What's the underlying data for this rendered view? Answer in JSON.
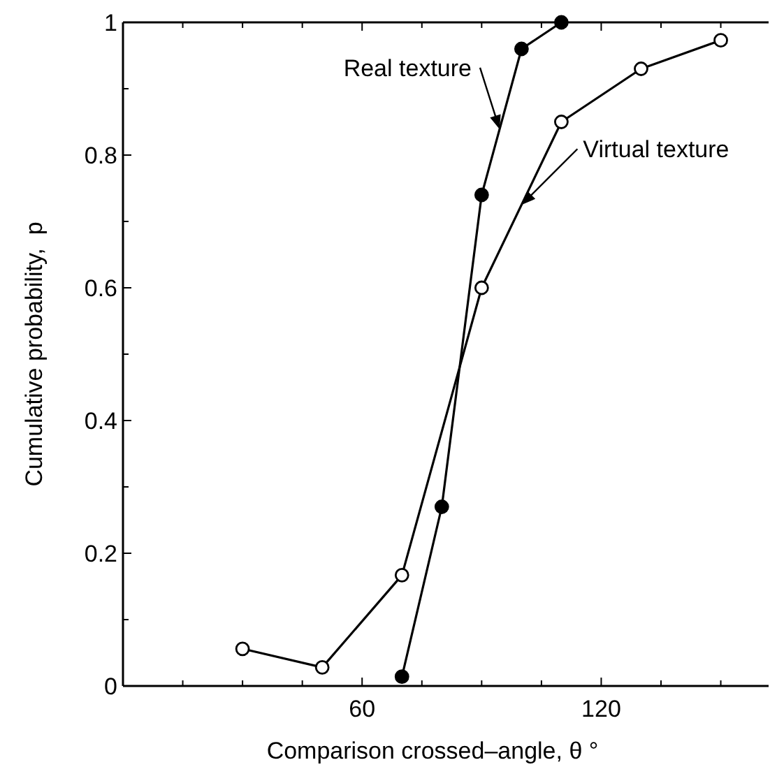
{
  "chart_data": {
    "type": "line",
    "xlabel": "Comparison crossed–angle, θ °",
    "ylabel": "Cumulative probability,  p",
    "xlim": [
      0,
      162
    ],
    "ylim": [
      0,
      1
    ],
    "xticks": [
      {
        "value": 15,
        "label": null
      },
      {
        "value": 30,
        "label": null
      },
      {
        "value": 45,
        "label": null
      },
      60,
      {
        "value": 75,
        "label": null
      },
      {
        "value": 90,
        "label": null
      },
      {
        "value": 105,
        "label": null
      },
      120,
      {
        "value": 135,
        "label": null
      },
      {
        "value": 150,
        "label": null
      }
    ],
    "yticks": [
      0,
      {
        "value": 0.1,
        "label": null
      },
      0.2,
      {
        "value": 0.3,
        "label": null
      },
      0.4,
      {
        "value": 0.5,
        "label": null
      },
      0.6,
      {
        "value": 0.7,
        "label": null
      },
      0.8,
      {
        "value": 0.9,
        "label": null
      },
      1
    ],
    "grid": false,
    "marker": "circle",
    "line_style": "solid",
    "series": [
      {
        "name": "Real texture",
        "color": "#000000",
        "x": [
          70,
          80,
          90,
          100,
          110
        ],
        "values": [
          0.014,
          0.27,
          0.74,
          0.96,
          1.0
        ]
      },
      {
        "name": "Virtual texture",
        "color": "#000000",
        "x": [
          30,
          50,
          70,
          90,
          110,
          130,
          150
        ],
        "values": [
          0.056,
          0.028,
          0.167,
          0.6,
          0.85,
          0.93,
          0.973
        ]
      }
    ]
  }
}
